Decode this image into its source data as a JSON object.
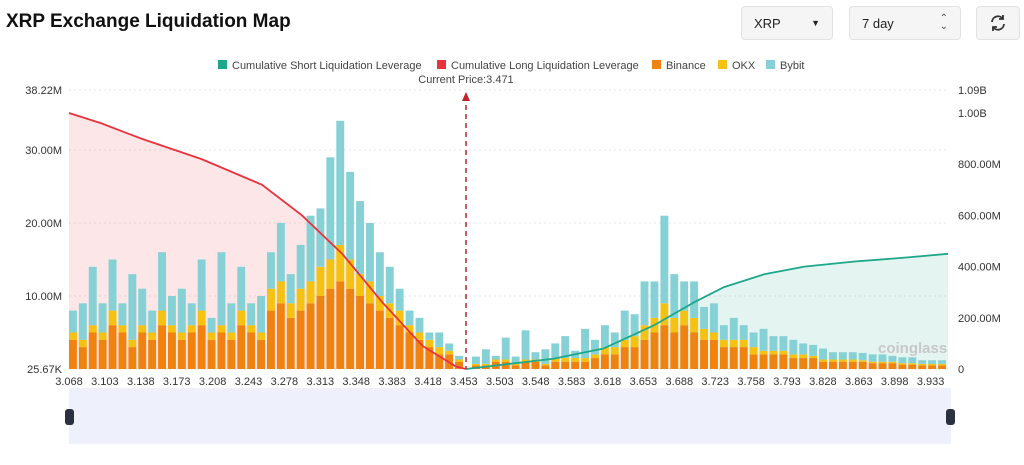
{
  "header": {
    "title": "XRP Exchange Liquidation Map",
    "coin_select": "XRP",
    "period_select": "7 day",
    "refresh_icon": "refresh-icon"
  },
  "watermark": "coinglass",
  "colors": {
    "short": "#1ea78a",
    "long": "#e8323c",
    "binance": "#f0820f",
    "okx": "#f5c211",
    "bybit": "#86d1d6"
  },
  "chart_data": {
    "type": "bar",
    "legend": [
      "Cumulative Short Liquidation Leverage",
      "Cumulative Long Liquidation Leverage",
      "Binance",
      "OKX",
      "Bybit"
    ],
    "legend_position": "top",
    "annotation": "Current Price:3.471",
    "current_price": 3.471,
    "x_tick_labels": [
      "3.068",
      "3.103",
      "3.138",
      "3.173",
      "3.208",
      "3.243",
      "3.278",
      "3.313",
      "3.348",
      "3.383",
      "3.418",
      "3.453",
      "3.503",
      "3.548",
      "3.583",
      "3.618",
      "3.653",
      "3.688",
      "3.723",
      "3.758",
      "3.793",
      "3.828",
      "3.863",
      "3.898",
      "3.933"
    ],
    "y_left_ticks": [
      "25.67K",
      "10.00M",
      "20.00M",
      "30.00M",
      "38.22M"
    ],
    "y_left_range_M": [
      0.02567,
      38.22
    ],
    "y_right_ticks": [
      "0",
      "200.00M",
      "400.00M",
      "600.00M",
      "800.00M",
      "1.00B",
      "1.09B"
    ],
    "y_right_range_M": [
      0,
      1090
    ],
    "series_long_side": {
      "binance": [
        4,
        3,
        5,
        4,
        6,
        5,
        3,
        5,
        4,
        6,
        5,
        4,
        5,
        6,
        4,
        5,
        4,
        6,
        5,
        4,
        8,
        9,
        7,
        8,
        9,
        10,
        11,
        12,
        11,
        10,
        9,
        8,
        7,
        6,
        5,
        4,
        3,
        2,
        2,
        1
      ],
      "okx": [
        1,
        1,
        1,
        1,
        2,
        1,
        1,
        1,
        1,
        2,
        1,
        1,
        1,
        2,
        1,
        1,
        1,
        2,
        1,
        1,
        3,
        3,
        2,
        3,
        3,
        4,
        4,
        5,
        4,
        3,
        3,
        2,
        2,
        2,
        1,
        1,
        1,
        1,
        0.5,
        0.3
      ],
      "bybit": [
        3,
        5,
        8,
        4,
        7,
        3,
        9,
        5,
        3,
        8,
        4,
        6,
        3,
        7,
        2,
        10,
        4,
        6,
        3,
        5,
        5,
        8,
        4,
        6,
        9,
        8,
        14,
        17,
        12,
        10,
        8,
        6,
        5,
        3,
        2,
        2,
        1,
        2,
        1,
        0.5
      ]
    },
    "series_short_side": {
      "binance": [
        0.5,
        0.5,
        1,
        1,
        0.5,
        1,
        1,
        0.5,
        1,
        1,
        1,
        1,
        1.5,
        2,
        2,
        3,
        3,
        4,
        5,
        6,
        5,
        6,
        5,
        4,
        4,
        3,
        3,
        3,
        2,
        2,
        2,
        2,
        1.5,
        1.5,
        1.5,
        1,
        1,
        1,
        1,
        1,
        0.8,
        0.8,
        0.8,
        0.6,
        0.6,
        0.5,
        0.5,
        0.5
      ],
      "okx": [
        0.2,
        0.2,
        0.3,
        0.3,
        0.2,
        0.3,
        0.3,
        0.2,
        0.5,
        0.5,
        0.5,
        0.5,
        0.5,
        1,
        1,
        1,
        1.5,
        2,
        2,
        3,
        2,
        2,
        2,
        1.5,
        1,
        1,
        1,
        1,
        1,
        0.5,
        0.5,
        0.5,
        0.5,
        0.5,
        0.3,
        0.3,
        0.3,
        0.3,
        0.3,
        0.2,
        0.2,
        0.2,
        0.2,
        0.2,
        0.2,
        0.2,
        0.2,
        0.2
      ],
      "bybit": [
        1,
        2,
        0.5,
        3,
        1,
        4,
        1,
        2,
        2,
        3,
        1,
        4,
        2,
        3,
        2,
        4,
        3,
        6,
        5,
        12,
        6,
        4,
        5,
        3,
        4,
        2,
        3,
        2,
        2,
        3,
        2,
        2,
        2,
        1.5,
        1.5,
        1.5,
        1,
        1,
        1,
        1,
        1,
        1,
        0.8,
        0.8,
        0.8,
        0.5,
        0.5,
        0.5
      ]
    },
    "cumulative_long_M": [
      [
        3.068,
        1000
      ],
      [
        3.1,
        960
      ],
      [
        3.14,
        900
      ],
      [
        3.2,
        820
      ],
      [
        3.26,
        720
      ],
      [
        3.3,
        600
      ],
      [
        3.34,
        450
      ],
      [
        3.38,
        260
      ],
      [
        3.42,
        90
      ],
      [
        3.453,
        10
      ],
      [
        3.463,
        0
      ]
    ],
    "cumulative_short_M": [
      [
        3.463,
        0
      ],
      [
        3.55,
        40
      ],
      [
        3.6,
        80
      ],
      [
        3.65,
        170
      ],
      [
        3.69,
        260
      ],
      [
        3.72,
        320
      ],
      [
        3.76,
        370
      ],
      [
        3.8,
        400
      ],
      [
        3.85,
        420
      ],
      [
        3.9,
        435
      ],
      [
        3.943,
        450
      ]
    ]
  }
}
